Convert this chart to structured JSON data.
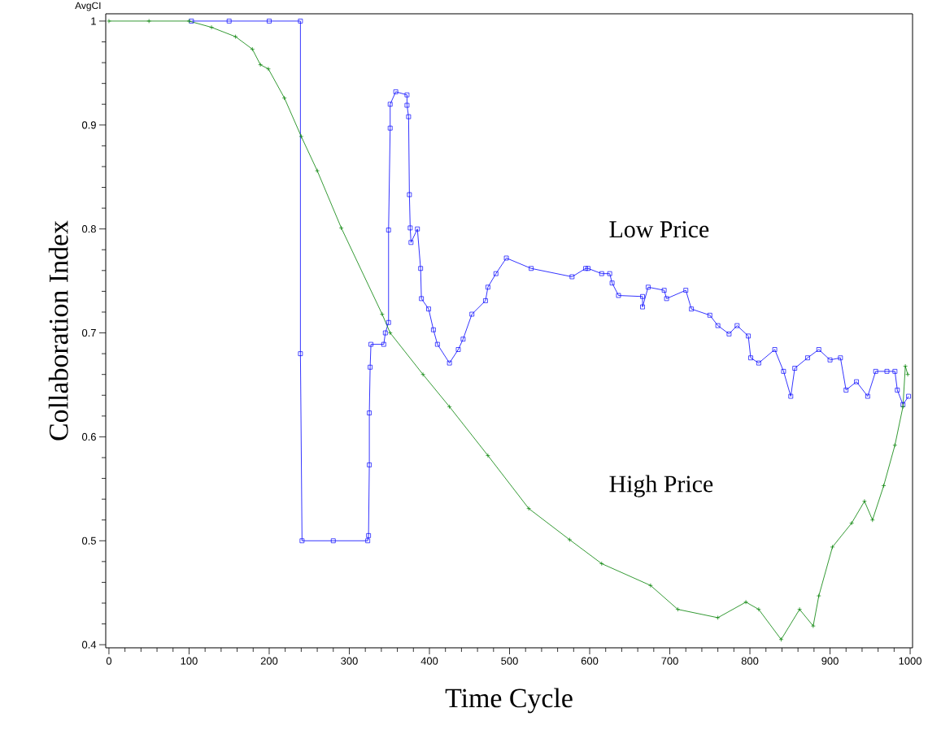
{
  "chart_data": {
    "type": "line",
    "xlabel": "Time Cycle",
    "ylabel": "Collaboration Index",
    "annotations": [
      "AvgCI"
    ],
    "xlim": [
      -4,
      1003
    ],
    "ylim": [
      0.397,
      1.007
    ],
    "xticks": [
      0,
      100,
      200,
      300,
      400,
      500,
      600,
      700,
      800,
      900,
      1000
    ],
    "yticks": [
      0.4,
      0.5,
      0.6,
      0.7,
      0.8,
      0.9,
      1
    ],
    "grid": false,
    "legend": false,
    "series": [
      {
        "name": "Low Price",
        "color": "#0000ff",
        "marker": "square",
        "x": [
          103,
          150,
          200,
          239,
          239,
          241,
          280,
          323,
          324,
          325,
          325,
          326,
          327,
          343,
          345,
          349,
          349,
          351,
          351,
          358,
          372,
          372,
          374,
          375,
          376,
          377,
          385,
          389,
          390,
          399,
          405,
          410,
          425,
          436,
          442,
          453,
          470,
          473,
          483,
          496,
          527,
          578,
          595,
          598,
          615,
          625,
          628,
          636,
          666,
          666,
          673,
          693,
          696,
          720,
          727,
          750,
          760,
          774,
          784,
          798,
          801,
          811,
          831,
          842,
          851,
          856,
          872,
          886,
          900,
          913,
          920,
          933,
          947,
          957,
          971,
          981,
          984,
          991,
          998
        ],
        "values": [
          1.0,
          1.0,
          1.0,
          1.0,
          0.68,
          0.5,
          0.5,
          0.5,
          0.505,
          0.573,
          0.623,
          0.667,
          0.689,
          0.689,
          0.7,
          0.71,
          0.799,
          0.897,
          0.92,
          0.932,
          0.929,
          0.919,
          0.908,
          0.833,
          0.801,
          0.787,
          0.8,
          0.762,
          0.733,
          0.723,
          0.703,
          0.689,
          0.671,
          0.684,
          0.694,
          0.718,
          0.731,
          0.744,
          0.757,
          0.772,
          0.762,
          0.754,
          0.762,
          0.762,
          0.757,
          0.757,
          0.748,
          0.736,
          0.735,
          0.725,
          0.744,
          0.741,
          0.733,
          0.741,
          0.723,
          0.717,
          0.707,
          0.699,
          0.707,
          0.697,
          0.676,
          0.671,
          0.684,
          0.663,
          0.639,
          0.666,
          0.676,
          0.684,
          0.674,
          0.676,
          0.645,
          0.653,
          0.639,
          0.663,
          0.663,
          0.663,
          0.645,
          0.631,
          0.639
        ]
      },
      {
        "name": "High Price",
        "color": "#008000",
        "marker": "cross",
        "x": [
          0,
          50,
          100,
          128,
          158,
          179,
          189,
          199,
          219,
          240,
          260,
          290,
          341,
          351,
          392,
          425,
          473,
          524,
          575,
          615,
          676,
          710,
          760,
          795,
          811,
          839,
          862,
          879,
          886,
          903,
          927,
          943,
          953,
          967,
          981,
          991,
          994,
          997
        ],
        "values": [
          1.0,
          1.0,
          1.0,
          0.994,
          0.985,
          0.973,
          0.958,
          0.954,
          0.926,
          0.889,
          0.856,
          0.801,
          0.718,
          0.7,
          0.66,
          0.629,
          0.582,
          0.531,
          0.501,
          0.478,
          0.457,
          0.434,
          0.426,
          0.441,
          0.434,
          0.405,
          0.434,
          0.418,
          0.447,
          0.494,
          0.517,
          0.538,
          0.52,
          0.553,
          0.592,
          0.629,
          0.668,
          0.66
        ]
      }
    ]
  }
}
